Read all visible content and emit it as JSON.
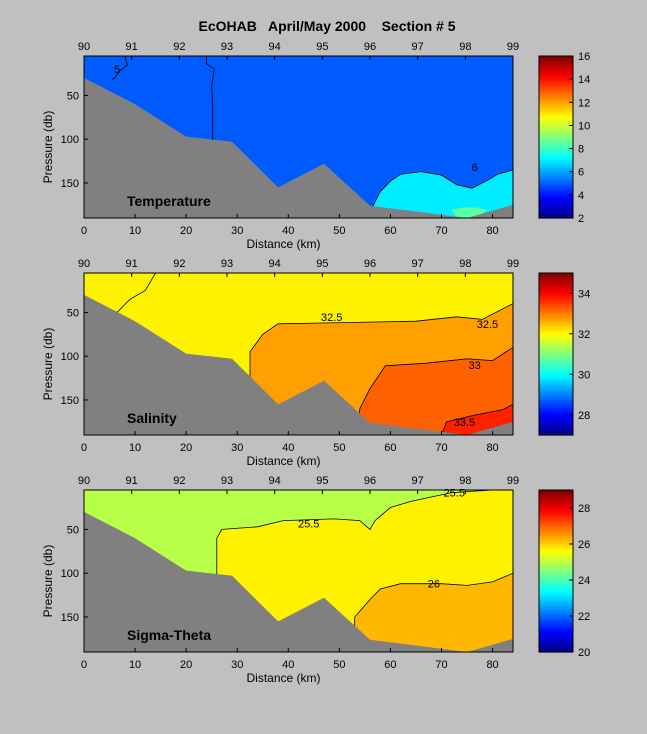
{
  "figure": {
    "title": "EcOHAB   April/May 2000    Section # 5",
    "background": "#c0c0c0",
    "bathymetry_color": "#808080"
  },
  "chart_data": [
    {
      "type": "heatmap",
      "panel_label": "Temperature",
      "xlabel": "Distance (km)",
      "ylabel": "Pressure (db)",
      "xlim": [
        0,
        84
      ],
      "ylim": [
        190,
        5
      ],
      "xticks": [
        "0",
        "10",
        "20",
        "30",
        "40",
        "50",
        "60",
        "70",
        "80"
      ],
      "yticks": [
        "50",
        "100",
        "150"
      ],
      "stations": [
        "90",
        "91",
        "92",
        "93",
        "94",
        "95",
        "96",
        "97",
        "98",
        "99"
      ],
      "colorbar": {
        "min": 2,
        "max": 16,
        "ticks": [
          "16",
          "14",
          "12",
          "10",
          "8",
          "6",
          "4",
          "2"
        ]
      },
      "background_value": 5,
      "regions": [
        {
          "value": 7,
          "polygon": [
            [
              57.5,
              190
            ],
            [
              56.5,
              177
            ],
            [
              58,
              160
            ],
            [
              60,
              148
            ],
            [
              62,
              140
            ],
            [
              66,
              137
            ],
            [
              70,
              141
            ],
            [
              73,
              152
            ],
            [
              76,
              156
            ],
            [
              79,
              147
            ],
            [
              81,
              140
            ],
            [
              84,
              135
            ],
            [
              84,
              190
            ]
          ]
        },
        {
          "value": 8.5,
          "polygon": [
            [
              73,
              190
            ],
            [
              72,
              181
            ],
            [
              74,
              178
            ],
            [
              77,
              178
            ],
            [
              79,
              181
            ],
            [
              77,
              190
            ]
          ]
        }
      ],
      "contour_labels": [
        {
          "text": "5",
          "x": 6.5,
          "y": 20
        },
        {
          "text": "6",
          "x": 76.5,
          "y": 132
        }
      ],
      "contours": [
        [
          [
            8,
            5
          ],
          [
            8.5,
            15
          ],
          [
            7,
            22
          ],
          [
            6,
            30
          ],
          [
            5.5,
            32
          ]
        ],
        [
          [
            24,
            5
          ],
          [
            24,
            14
          ],
          [
            25.5,
            20
          ],
          [
            25,
            40
          ],
          [
            25.2,
            60
          ],
          [
            25.2,
            105
          ]
        ],
        [
          [
            57.5,
            190
          ],
          [
            56.5,
            177
          ],
          [
            58,
            160
          ],
          [
            60,
            148
          ],
          [
            62,
            140
          ],
          [
            66,
            137
          ],
          [
            70,
            141
          ],
          [
            73,
            152
          ],
          [
            76,
            156
          ],
          [
            79,
            147
          ],
          [
            81,
            140
          ],
          [
            84,
            135
          ]
        ]
      ],
      "bathymetry": [
        [
          0,
          30
        ],
        [
          5,
          45
        ],
        [
          10,
          60
        ],
        [
          20,
          97
        ],
        [
          29,
          103
        ],
        [
          38,
          155
        ],
        [
          47,
          128
        ],
        [
          56,
          176
        ],
        [
          75,
          190
        ],
        [
          84,
          175
        ]
      ]
    },
    {
      "type": "heatmap",
      "panel_label": "Salinity",
      "xlabel": "Distance (km)",
      "ylabel": "Pressure (db)",
      "xlim": [
        0,
        84
      ],
      "ylim": [
        190,
        5
      ],
      "xticks": [
        "0",
        "10",
        "20",
        "30",
        "40",
        "50",
        "60",
        "70",
        "80"
      ],
      "yticks": [
        "50",
        "100",
        "150"
      ],
      "stations": [
        "90",
        "91",
        "92",
        "93",
        "94",
        "95",
        "96",
        "97",
        "98",
        "99"
      ],
      "colorbar": {
        "min": 27,
        "max": 35,
        "ticks": [
          "34",
          "32",
          "30",
          "28"
        ]
      },
      "background_value": 32.1,
      "regions": [
        {
          "value": 32.75,
          "polygon": [
            [
              32.5,
              190
            ],
            [
              32.5,
              95
            ],
            [
              35,
              75
            ],
            [
              38,
              63
            ],
            [
              48,
              62
            ],
            [
              65,
              60
            ],
            [
              73,
              55
            ],
            [
              78,
              58
            ],
            [
              84,
              40
            ],
            [
              84,
              190
            ]
          ]
        },
        {
          "value": 33.25,
          "polygon": [
            [
              53.5,
              190
            ],
            [
              54,
              160
            ],
            [
              56,
              137
            ],
            [
              59,
              111
            ],
            [
              67,
              108
            ],
            [
              75,
              103
            ],
            [
              80,
              105
            ],
            [
              84,
              90
            ],
            [
              84,
              190
            ]
          ]
        },
        {
          "value": 33.75,
          "polygon": [
            [
              70,
              190
            ],
            [
              71,
              175
            ],
            [
              76,
              168
            ],
            [
              82,
              161
            ],
            [
              84,
              155
            ],
            [
              84,
              190
            ]
          ]
        }
      ],
      "contour_labels": [
        {
          "text": "32.5",
          "x": 48.5,
          "y": 55
        },
        {
          "text": "32.5",
          "x": 79,
          "y": 63
        },
        {
          "text": "33",
          "x": 76.5,
          "y": 110
        },
        {
          "text": "33.5",
          "x": 74.5,
          "y": 175
        }
      ],
      "contours": [
        [
          [
            6.5,
            50
          ],
          [
            9,
            35
          ],
          [
            12,
            25
          ],
          [
            13,
            15
          ],
          [
            14,
            5
          ]
        ],
        [
          [
            32.5,
            190
          ],
          [
            32.5,
            95
          ],
          [
            35,
            75
          ],
          [
            38,
            63
          ],
          [
            48,
            62
          ],
          [
            65,
            60
          ],
          [
            73,
            55
          ],
          [
            78,
            58
          ],
          [
            84,
            40
          ]
        ],
        [
          [
            53.5,
            190
          ],
          [
            54,
            160
          ],
          [
            56,
            137
          ],
          [
            59,
            111
          ],
          [
            67,
            108
          ],
          [
            75,
            103
          ],
          [
            80,
            105
          ],
          [
            84,
            90
          ]
        ],
        [
          [
            70,
            190
          ],
          [
            71,
            175
          ],
          [
            76,
            168
          ],
          [
            82,
            161
          ],
          [
            84,
            155
          ]
        ]
      ],
      "bathymetry": [
        [
          0,
          30
        ],
        [
          5,
          45
        ],
        [
          10,
          60
        ],
        [
          20,
          97
        ],
        [
          29,
          103
        ],
        [
          38,
          155
        ],
        [
          47,
          128
        ],
        [
          56,
          176
        ],
        [
          75,
          190
        ],
        [
          84,
          175
        ]
      ]
    },
    {
      "type": "heatmap",
      "panel_label": "Sigma-Theta",
      "xlabel": "Distance (km)",
      "ylabel": "Pressure (db)",
      "xlim": [
        0,
        84
      ],
      "ylim": [
        190,
        5
      ],
      "xticks": [
        "0",
        "10",
        "20",
        "30",
        "40",
        "50",
        "60",
        "70",
        "80"
      ],
      "yticks": [
        "50",
        "100",
        "150"
      ],
      "stations": [
        "90",
        "91",
        "92",
        "93",
        "94",
        "95",
        "96",
        "97",
        "98",
        "99"
      ],
      "colorbar": {
        "min": 20,
        "max": 29,
        "ticks": [
          "28",
          "26",
          "24",
          "22",
          "20"
        ]
      },
      "background_value": 25,
      "regions": [
        {
          "value": 25.75,
          "polygon": [
            [
              26,
              190
            ],
            [
              26,
              60
            ],
            [
              27,
              50
            ],
            [
              34,
              47
            ],
            [
              39,
              40
            ],
            [
              49,
              38
            ],
            [
              54,
              40
            ],
            [
              56,
              50
            ],
            [
              57,
              40
            ],
            [
              60,
              25
            ],
            [
              64,
              18
            ],
            [
              72,
              8
            ],
            [
              80,
              5
            ],
            [
              84,
              5
            ],
            [
              84,
              190
            ]
          ]
        },
        {
          "value": 26.25,
          "polygon": [
            [
              53,
              190
            ],
            [
              53,
              150
            ],
            [
              56,
              130
            ],
            [
              58,
              118
            ],
            [
              62,
              112
            ],
            [
              70,
              112
            ],
            [
              75,
              114
            ],
            [
              80,
              110
            ],
            [
              84,
              100
            ],
            [
              84,
              190
            ]
          ]
        }
      ],
      "contour_labels": [
        {
          "text": "25.5",
          "x": 44,
          "y": 43
        },
        {
          "text": "25.5",
          "x": 72.5,
          "y": 8
        },
        {
          "text": "26",
          "x": 68.5,
          "y": 112
        }
      ],
      "contours": [
        [
          [
            26,
            190
          ],
          [
            26,
            60
          ],
          [
            27,
            50
          ],
          [
            34,
            47
          ],
          [
            39,
            40
          ],
          [
            49,
            38
          ],
          [
            54,
            40
          ],
          [
            56,
            50
          ],
          [
            57,
            40
          ],
          [
            60,
            25
          ],
          [
            64,
            18
          ],
          [
            72,
            8
          ],
          [
            80,
            5
          ],
          [
            84,
            5
          ]
        ],
        [
          [
            53,
            190
          ],
          [
            53,
            150
          ],
          [
            56,
            130
          ],
          [
            58,
            118
          ],
          [
            62,
            112
          ],
          [
            70,
            112
          ],
          [
            75,
            114
          ],
          [
            80,
            110
          ],
          [
            84,
            100
          ]
        ]
      ],
      "bathymetry": [
        [
          0,
          30
        ],
        [
          5,
          45
        ],
        [
          10,
          60
        ],
        [
          20,
          97
        ],
        [
          29,
          103
        ],
        [
          38,
          155
        ],
        [
          47,
          128
        ],
        [
          56,
          176
        ],
        [
          75,
          190
        ],
        [
          84,
          175
        ]
      ]
    }
  ]
}
